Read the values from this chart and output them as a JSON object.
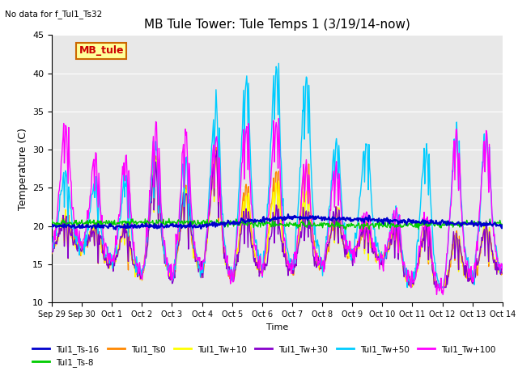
{
  "title": "MB Tule Tower: Tule Temps 1 (3/19/14-now)",
  "no_data_text": "No data for f_Tul1_Ts32",
  "xlabel": "Time",
  "ylabel": "Temperature (C)",
  "ylim": [
    10,
    45
  ],
  "yticks": [
    10,
    15,
    20,
    25,
    30,
    35,
    40,
    45
  ],
  "background_color": "#ffffff",
  "plot_bg_color": "#e8e8e8",
  "series": [
    {
      "label": "Tul1_Ts-16",
      "color": "#0000cc",
      "lw": 1.5
    },
    {
      "label": "Tul1_Ts-8",
      "color": "#00cc00",
      "lw": 1.0
    },
    {
      "label": "Tul1_Ts0",
      "color": "#ff8800",
      "lw": 1.0
    },
    {
      "label": "Tul1_Tw+10",
      "color": "#ffff00",
      "lw": 1.0
    },
    {
      "label": "Tul1_Tw+30",
      "color": "#8800cc",
      "lw": 1.0
    },
    {
      "label": "Tul1_Tw+50",
      "color": "#00ccff",
      "lw": 1.0
    },
    {
      "label": "Tul1_Tw+100",
      "color": "#ff00ff",
      "lw": 1.0
    }
  ],
  "xtick_labels": [
    "Sep 29",
    "Sep 30",
    "Oct 1",
    "Oct 2",
    "Oct 3",
    "Oct 4",
    "Oct 5",
    "Oct 6",
    "Oct 7",
    "Oct 8",
    "Oct 9",
    "Oct 10",
    "Oct 11",
    "Oct 12",
    "Oct 13",
    "Oct 14"
  ],
  "mb_tule_box": {
    "text": "MB_tule",
    "facecolor": "#ffff99",
    "edgecolor": "#cc6600",
    "textcolor": "#cc0000"
  },
  "figsize": [
    6.4,
    4.8
  ],
  "dpi": 100
}
